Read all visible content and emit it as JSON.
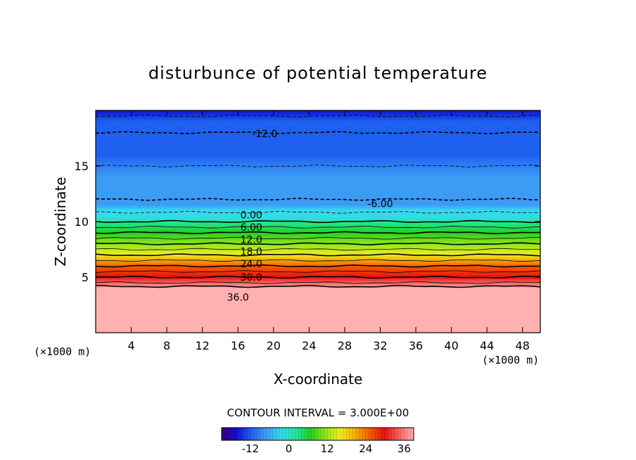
{
  "chart_data": {
    "type": "heatmap",
    "title": "disturbunce of potential temperature",
    "xlabel": "X-coordinate",
    "ylabel": "Z-coordinate",
    "x_unit_left": "(×1000 m)",
    "x_unit_right": "(×1000 m)",
    "xlim": [
      0,
      50
    ],
    "ylim": [
      0,
      20
    ],
    "x_ticks": [
      4,
      8,
      12,
      16,
      20,
      24,
      28,
      32,
      36,
      40,
      44,
      48
    ],
    "y_ticks": [
      5,
      10,
      15
    ],
    "contour_interval_text": "CONTOUR INTERVAL = 3.000E+00",
    "contour_interval": 3,
    "colorbar": {
      "min": -21,
      "max": 39,
      "ticks": [
        -12,
        0,
        12,
        24,
        36
      ]
    },
    "profile": {
      "z": [
        0,
        2,
        4,
        4.5,
        5,
        6,
        7,
        8,
        9,
        10,
        10.5,
        11,
        11.5,
        12,
        14,
        16,
        18,
        19,
        20
      ],
      "theta": [
        37.5,
        37.5,
        37.5,
        33,
        30,
        24,
        18,
        12,
        6,
        0,
        -2,
        -3.5,
        -5,
        -6,
        -8,
        -10,
        -12,
        -14,
        -16
      ]
    },
    "contour_labels": [
      {
        "text": "-12.0",
        "x": 19,
        "z": 17.9
      },
      {
        "text": "-6.00",
        "x": 32,
        "z": 11.6
      },
      {
        "text": "0.00",
        "x": 17.5,
        "z": 10.6
      },
      {
        "text": "6.00",
        "x": 17.5,
        "z": 9.5
      },
      {
        "text": "12.0",
        "x": 17.5,
        "z": 8.4
      },
      {
        "text": "18.0",
        "x": 17.5,
        "z": 7.3
      },
      {
        "text": "24.0",
        "x": 17.5,
        "z": 6.2
      },
      {
        "text": "30.0",
        "x": 17.5,
        "z": 5.0
      },
      {
        "text": "36.0",
        "x": 16,
        "z": 3.2
      }
    ]
  },
  "colors": {
    "scale": [
      "#3a007a",
      "#1010d0",
      "#1e60f0",
      "#3c9cf5",
      "#36d8ee",
      "#22e8a0",
      "#22d022",
      "#8ee41a",
      "#f0ec20",
      "#f8b000",
      "#f46000",
      "#e81010",
      "#f86060",
      "#ffb0b0"
    ],
    "contour_line": "#000000"
  }
}
